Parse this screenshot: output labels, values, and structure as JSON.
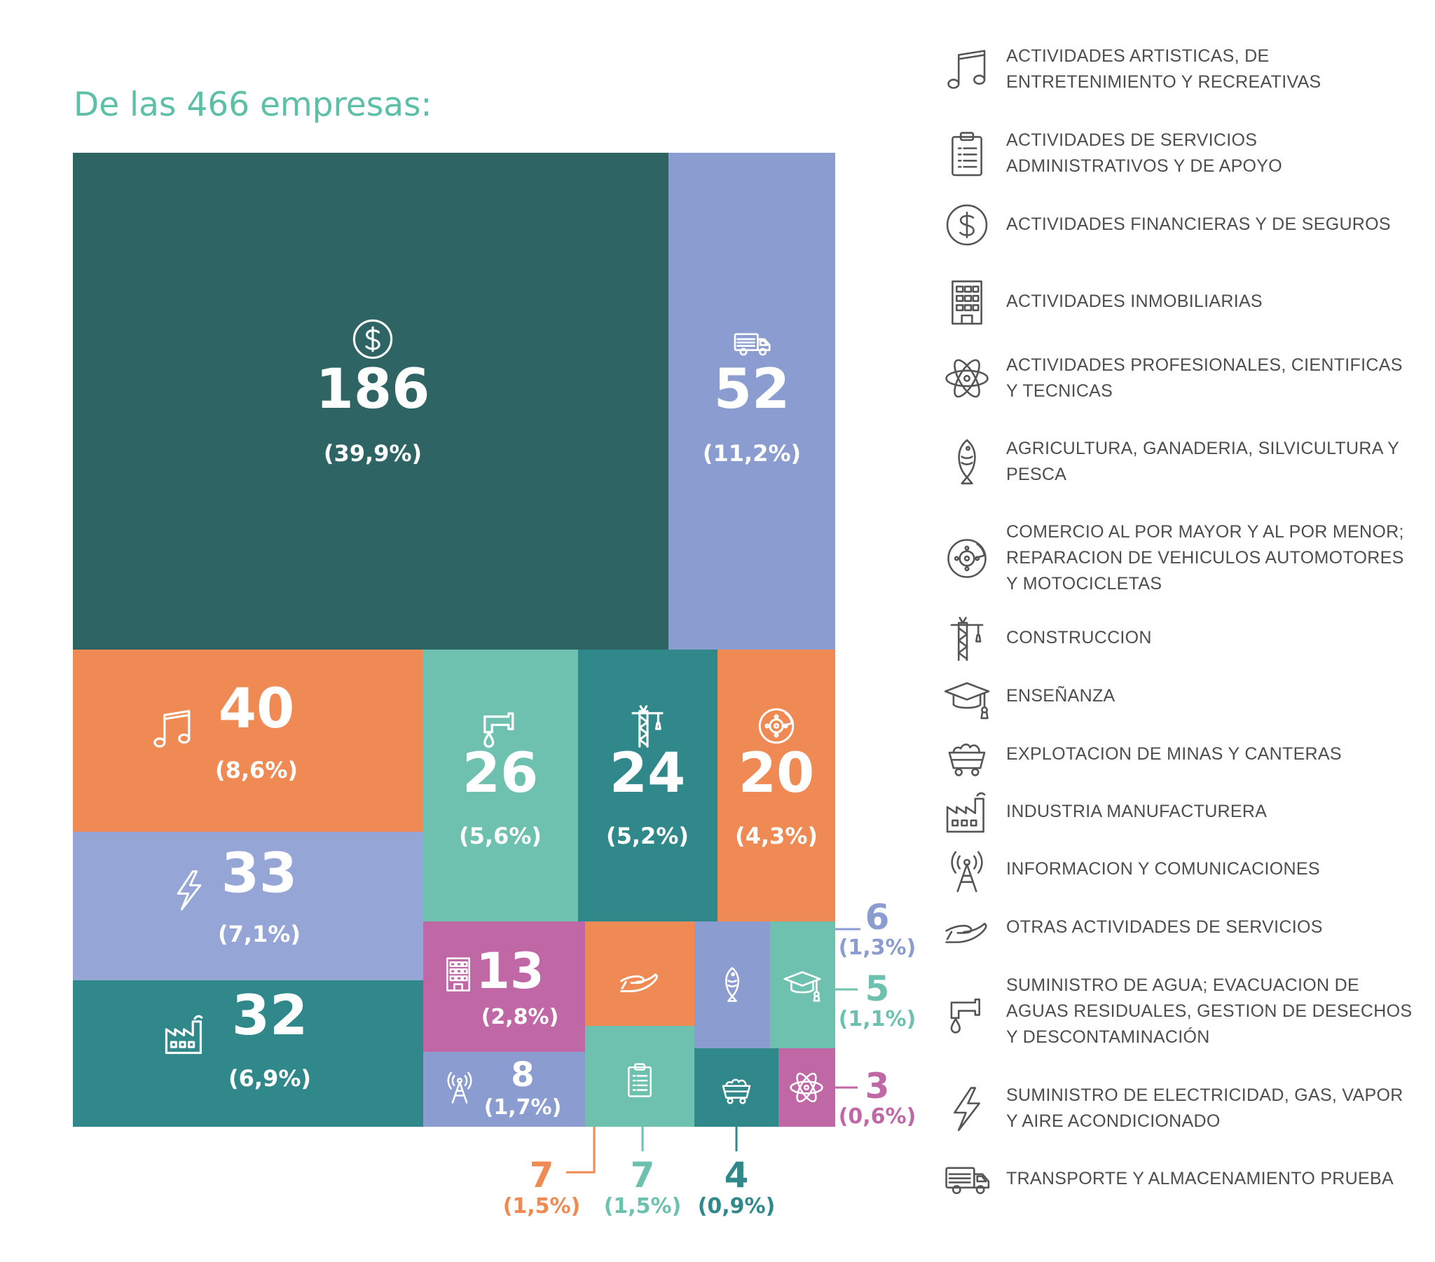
{
  "title": "De las 466 empresas:",
  "colors": {
    "dark_teal": "#2e6464",
    "teal": "#30888a",
    "mint": "#6dc1ae",
    "periwinkle": "#8a9cd0",
    "orange": "#f08a54",
    "magenta": "#c067a6",
    "title": "#5cbfa6",
    "legend_text": "#4d4d4d"
  },
  "chart_data": {
    "type": "treemap",
    "title": "De las 466 empresas:",
    "total": 466,
    "items": [
      {
        "id": "finance",
        "value": 186,
        "label": "186",
        "pct": "(39,9%)",
        "icon": "dollar-icon",
        "color": "#2e6464"
      },
      {
        "id": "transport",
        "value": 52,
        "label": "52",
        "pct": "(11,2%)",
        "icon": "truck-icon",
        "color": "#8a9cd0"
      },
      {
        "id": "arts",
        "value": 40,
        "label": "40",
        "pct": "(8,6%)",
        "icon": "music-icon",
        "color": "#f08a54"
      },
      {
        "id": "electric",
        "value": 33,
        "label": "33",
        "pct": "(7,1%)",
        "icon": "lightning-icon",
        "color": "#95a6d6"
      },
      {
        "id": "manufacturing",
        "value": 32,
        "label": "32",
        "pct": "(6,9%)",
        "icon": "factory-icon",
        "color": "#30888a"
      },
      {
        "id": "water",
        "value": 26,
        "label": "26",
        "pct": "(5,6%)",
        "icon": "faucet-icon",
        "color": "#6dc1ae"
      },
      {
        "id": "construction",
        "value": 24,
        "label": "24",
        "pct": "(5,2%)",
        "icon": "crane-icon",
        "color": "#30888a"
      },
      {
        "id": "commerce",
        "value": 20,
        "label": "20",
        "pct": "(4,3%)",
        "icon": "brake-disc-icon",
        "color": "#f08a54"
      },
      {
        "id": "realestate",
        "value": 13,
        "label": "13",
        "pct": "(2,8%)",
        "icon": "building-icon",
        "color": "#c067a6"
      },
      {
        "id": "info",
        "value": 8,
        "label": "8",
        "pct": "(1,7%)",
        "icon": "antenna-icon",
        "color": "#8a9cd0"
      },
      {
        "id": "other",
        "value": 7,
        "label": "7",
        "pct": "(1,5%)",
        "icon": "hand-icon",
        "color": "#f08a54"
      },
      {
        "id": "admin",
        "value": 7,
        "label": "7",
        "pct": "(1,5%)",
        "icon": "clipboard-icon",
        "color": "#6dc1ae"
      },
      {
        "id": "agriculture",
        "value": 6,
        "label": "6",
        "pct": "(1,3%)",
        "icon": "fish-icon",
        "color": "#8a9cd0"
      },
      {
        "id": "education",
        "value": 5,
        "label": "5",
        "pct": "(1,1%)",
        "icon": "graduation-cap-icon",
        "color": "#6dc1ae"
      },
      {
        "id": "mining",
        "value": 4,
        "label": "4",
        "pct": "(0,9%)",
        "icon": "mine-cart-icon",
        "color": "#30888a"
      },
      {
        "id": "professional",
        "value": 3,
        "label": "3",
        "pct": "(0,6%)",
        "icon": "atom-icon",
        "color": "#c067a6"
      }
    ]
  },
  "legend": [
    {
      "icon": "music-icon",
      "label": "ACTIVIDADES ARTISTICAS, DE ENTRETENIMIENTO Y RECREATIVAS"
    },
    {
      "icon": "clipboard-icon",
      "label": "ACTIVIDADES DE SERVICIOS ADMINISTRATIVOS Y DE APOYO"
    },
    {
      "icon": "dollar-icon",
      "label": "ACTIVIDADES FINANCIERAS Y DE SEGUROS"
    },
    {
      "icon": "building-icon",
      "label": "ACTIVIDADES INMOBILIARIAS"
    },
    {
      "icon": "atom-icon",
      "label": "ACTIVIDADES PROFESIONALES, CIENTIFICAS Y TECNICAS"
    },
    {
      "icon": "fish-icon",
      "label": "AGRICULTURA, GANADERIA, SILVICULTURA Y PESCA"
    },
    {
      "icon": "brake-disc-icon",
      "label": "COMERCIO AL POR MAYOR Y AL POR MENOR; REPARACION DE VEHICULOS AUTOMOTORES Y MOTOCICLETAS"
    },
    {
      "icon": "crane-icon",
      "label": "CONSTRUCCION"
    },
    {
      "icon": "graduation-cap-icon",
      "label": "ENSEÑANZA"
    },
    {
      "icon": "mine-cart-icon",
      "label": "EXPLOTACION DE MINAS Y CANTERAS"
    },
    {
      "icon": "factory-icon",
      "label": "INDUSTRIA MANUFACTURERA"
    },
    {
      "icon": "antenna-icon",
      "label": "INFORMACION Y COMUNICACIONES"
    },
    {
      "icon": "hand-icon",
      "label": "OTRAS ACTIVIDADES DE SERVICIOS"
    },
    {
      "icon": "faucet-icon",
      "label": "SUMINISTRO DE AGUA; EVACUACION DE AGUAS RESIDUALES, GESTION DE DESECHOS Y DESCONTAMINACIÓN"
    },
    {
      "icon": "lightning-icon",
      "label": "SUMINISTRO DE ELECTRICIDAD, GAS, VAPOR Y AIRE ACONDICIONADO"
    },
    {
      "icon": "truck-icon",
      "label": "TRANSPORTE Y ALMACENAMIENTO PRUEBA"
    }
  ]
}
